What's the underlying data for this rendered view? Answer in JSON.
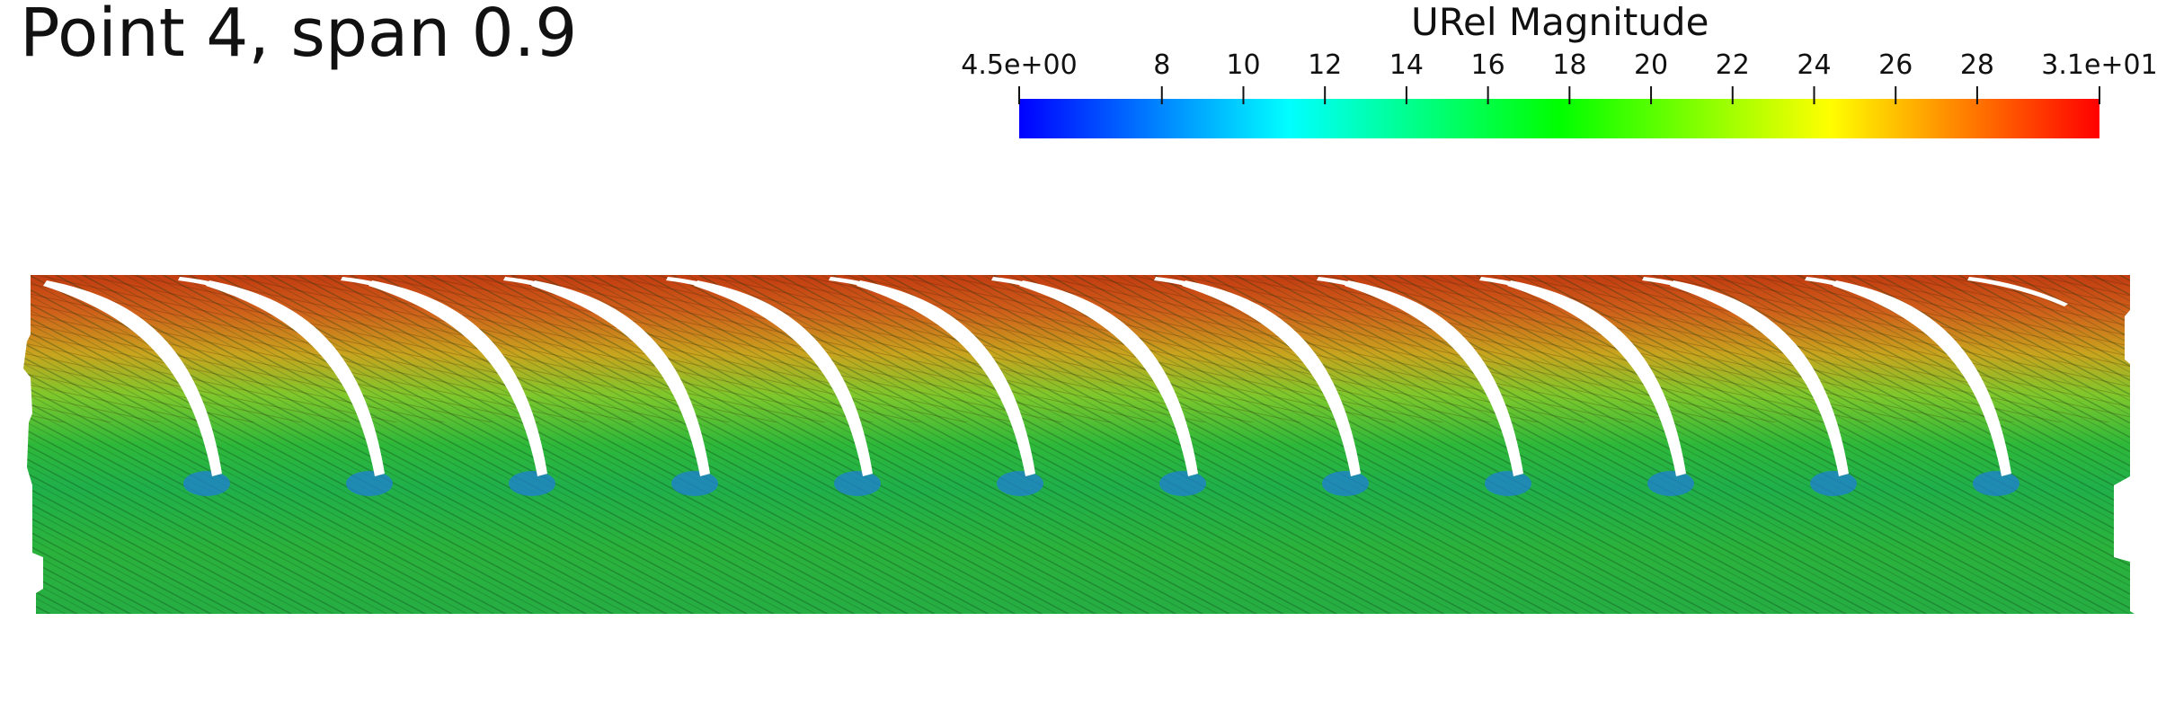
{
  "title": "Point 4, span 0.9",
  "colorbar": {
    "title": "URel Magnitude",
    "min": 4.5,
    "max": 31,
    "min_label": "4.5e+00",
    "max_label": "3.1e+01",
    "ticks": [
      {
        "value": 4.5,
        "label": "4.5e+00"
      },
      {
        "value": 8,
        "label": "8"
      },
      {
        "value": 10,
        "label": "10"
      },
      {
        "value": 12,
        "label": "12"
      },
      {
        "value": 14,
        "label": "14"
      },
      {
        "value": 16,
        "label": "16"
      },
      {
        "value": 18,
        "label": "18"
      },
      {
        "value": 20,
        "label": "20"
      },
      {
        "value": 22,
        "label": "22"
      },
      {
        "value": 24,
        "label": "24"
      },
      {
        "value": 26,
        "label": "26"
      },
      {
        "value": 28,
        "label": "28"
      },
      {
        "value": 31,
        "label": "3.1e+01"
      }
    ],
    "colormap": [
      "#0000ff",
      "#00ffff",
      "#00ff00",
      "#ffff00",
      "#ff0000"
    ]
  },
  "field": {
    "blade_count": 12,
    "description_colors": {
      "top_band": "#c8501a",
      "mid": "#2fb43a",
      "bottom": "#22b24a",
      "leading_edge": "#1a7fd0"
    }
  }
}
